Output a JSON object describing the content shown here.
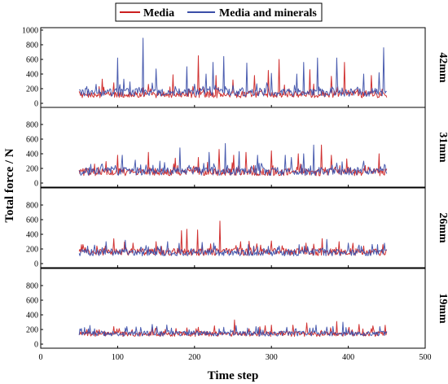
{
  "chart_data": {
    "type": "line",
    "xlabel": "Time step",
    "ylabel": "Total force / N",
    "xlim": [
      0,
      500
    ],
    "x_ticks": [
      "0",
      "100",
      "200",
      "300",
      "400",
      "500"
    ],
    "ylim": [
      0,
      1000
    ],
    "y_ticks": [
      "0",
      "200",
      "400",
      "600",
      "800",
      "1000"
    ],
    "y_ticks_inner": [
      "0",
      "200",
      "400",
      "600",
      "800"
    ],
    "legend": {
      "placement": "top-center",
      "entries": [
        {
          "name": "Media",
          "color": "#cc1f1f"
        },
        {
          "name": "Media and minerals",
          "color": "#3b4ea8"
        }
      ]
    },
    "panels": [
      {
        "label": "42mm",
        "x_range": [
          50,
          450
        ],
        "series": [
          {
            "name": "Media",
            "color": "#cc1f1f",
            "baseline": 120,
            "noise": 45,
            "peaks": [
              [
                80,
                330
              ],
              [
                95,
                280
              ],
              [
                140,
                260
              ],
              [
                172,
                390
              ],
              [
                205,
                650
              ],
              [
                228,
                380
              ],
              [
                250,
                320
              ],
              [
                278,
                380
              ],
              [
                296,
                450
              ],
              [
                310,
                600
              ],
              [
                350,
                460
              ],
              [
                378,
                370
              ],
              [
                395,
                560
              ],
              [
                430,
                380
              ]
            ]
          },
          {
            "name": "Media and minerals",
            "color": "#3b4ea8",
            "baseline": 150,
            "noise": 55,
            "peaks": [
              [
                72,
                260
              ],
              [
                100,
                620
              ],
              [
                108,
                330
              ],
              [
                133,
                890
              ],
              [
                150,
                470
              ],
              [
                190,
                500
              ],
              [
                215,
                400
              ],
              [
                224,
                560
              ],
              [
                238,
                640
              ],
              [
                268,
                550
              ],
              [
                300,
                410
              ],
              [
                333,
                400
              ],
              [
                342,
                560
              ],
              [
                360,
                620
              ],
              [
                385,
                620
              ],
              [
                420,
                400
              ],
              [
                440,
                420
              ],
              [
                446,
                760
              ]
            ]
          }
        ]
      },
      {
        "label": "31mm",
        "x_range": [
          50,
          450
        ],
        "series": [
          {
            "name": "Media",
            "color": "#cc1f1f",
            "baseline": 150,
            "noise": 50,
            "peaks": [
              [
                70,
                260
              ],
              [
                100,
                380
              ],
              [
                140,
                420
              ],
              [
                175,
                340
              ],
              [
                205,
                350
              ],
              [
                232,
                460
              ],
              [
                251,
                380
              ],
              [
                267,
                420
              ],
              [
                300,
                440
              ],
              [
                335,
                400
              ],
              [
                365,
                520
              ],
              [
                378,
                380
              ],
              [
                398,
                330
              ],
              [
                440,
                400
              ]
            ]
          },
          {
            "name": "Media and minerals",
            "color": "#3b4ea8",
            "baseline": 160,
            "noise": 55,
            "peaks": [
              [
                80,
                260
              ],
              [
                106,
                380
              ],
              [
                155,
                300
              ],
              [
                181,
                480
              ],
              [
                219,
                420
              ],
              [
                240,
                540
              ],
              [
                258,
                430
              ],
              [
                282,
                380
              ],
              [
                318,
                380
              ],
              [
                326,
                350
              ],
              [
                342,
                400
              ],
              [
                355,
                520
              ],
              [
                392,
                290
              ],
              [
                420,
                300
              ],
              [
                448,
                240
              ]
            ]
          }
        ]
      },
      {
        "label": "26mm",
        "x_range": [
          50,
          450
        ],
        "series": [
          {
            "name": "Media",
            "color": "#cc1f1f",
            "baseline": 160,
            "noise": 50,
            "peaks": [
              [
                55,
                260
              ],
              [
                95,
                340
              ],
              [
                120,
                280
              ],
              [
                150,
                300
              ],
              [
                183,
                450
              ],
              [
                190,
                470
              ],
              [
                204,
                460
              ],
              [
                233,
                580
              ],
              [
                260,
                300
              ],
              [
                300,
                310
              ],
              [
                345,
                280
              ],
              [
                366,
                340
              ],
              [
                388,
                300
              ],
              [
                420,
                240
              ],
              [
                445,
                260
              ]
            ]
          },
          {
            "name": "Media and minerals",
            "color": "#3b4ea8",
            "baseline": 150,
            "noise": 45,
            "peaks": [
              [
                85,
                300
              ],
              [
                110,
                320
              ],
              [
                165,
                300
              ],
              [
                225,
                280
              ],
              [
                270,
                260
              ],
              [
                310,
                240
              ],
              [
                336,
                260
              ],
              [
                372,
                330
              ],
              [
                400,
                280
              ],
              [
                438,
                260
              ]
            ]
          }
        ]
      },
      {
        "label": "19mm",
        "x_range": [
          50,
          450
        ],
        "series": [
          {
            "name": "Media",
            "color": "#cc1f1f",
            "baseline": 140,
            "noise": 35,
            "peaks": [
              [
                60,
                200
              ],
              [
                95,
                240
              ],
              [
                150,
                220
              ],
              [
                205,
                230
              ],
              [
                226,
                250
              ],
              [
                252,
                330
              ],
              [
                300,
                260
              ],
              [
                328,
                260
              ],
              [
                346,
                290
              ],
              [
                385,
                310
              ],
              [
                414,
                270
              ],
              [
                432,
                250
              ]
            ]
          },
          {
            "name": "Media and minerals",
            "color": "#3b4ea8",
            "baseline": 145,
            "noise": 35,
            "peaks": [
              [
                70,
                210
              ],
              [
                112,
                240
              ],
              [
                170,
                220
              ],
              [
                238,
                230
              ],
              [
                280,
                240
              ],
              [
                320,
                230
              ],
              [
                358,
                260
              ],
              [
                393,
                300
              ],
              [
                441,
                240
              ]
            ]
          }
        ]
      }
    ]
  }
}
